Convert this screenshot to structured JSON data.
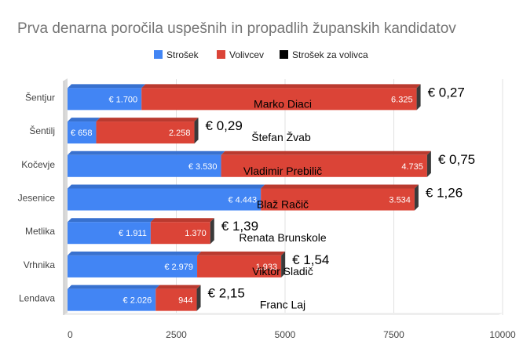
{
  "chart_data": {
    "type": "bar",
    "orientation": "horizontal",
    "stacked": true,
    "title": "Prva denarna poročila uspešnih in propadlih županskih kandidatov",
    "legend_position": "top",
    "xlim": [
      0,
      10000
    ],
    "x_ticks": [
      {
        "value": 0,
        "label": "0"
      },
      {
        "value": 2500,
        "label": "2500"
      },
      {
        "value": 5000,
        "label": "5000"
      },
      {
        "value": 7500,
        "label": "7500"
      },
      {
        "value": 10000,
        "label": "10000"
      }
    ],
    "grid": true,
    "categories": [
      "Šentjur",
      "Šentilj",
      "Kočevje",
      "Jesenice",
      "Metlika",
      "Vrhnika",
      "Lendava"
    ],
    "series": [
      {
        "name": "Strošek",
        "color": "#4285f4",
        "values": [
          1700,
          658,
          3530,
          4443,
          1911,
          2979,
          2026
        ],
        "labels": [
          "€ 1.700",
          "€ 658",
          "€ 3.530",
          "€ 4.443",
          "€ 1.911",
          "€ 2.979",
          "€ 2.026"
        ]
      },
      {
        "name": "Volivcev",
        "color": "#db4437",
        "values": [
          6325,
          2258,
          4735,
          3534,
          1370,
          1933,
          944
        ],
        "labels": [
          "6.325",
          "2.258",
          "4.735",
          "3.534",
          "1.370",
          "1.933",
          "944"
        ]
      },
      {
        "name": "Strošek za volivca",
        "color": "#000000",
        "values": [
          0.27,
          0.29,
          0.75,
          1.26,
          1.39,
          1.54,
          2.15
        ],
        "labels": [
          "€ 0,27",
          "€ 0,29",
          "€ 0,75",
          "€ 1,26",
          "€ 1,39",
          "€ 1,54",
          "€ 2,15"
        ]
      }
    ],
    "annotations": [
      "Marko Diaci",
      "Štefan Žvab",
      "Vladimir Prebilič",
      "Blaž Račič",
      "Renata Brunskole",
      "Viktor Sladič",
      "Franc Laj"
    ]
  }
}
